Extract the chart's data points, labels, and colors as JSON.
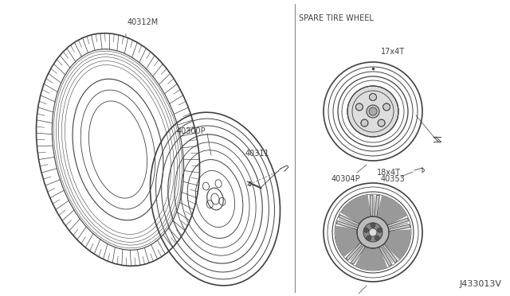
{
  "bg_color": "#ffffff",
  "line_color": "#404040",
  "title": "SPARE TIRE WHEEL",
  "label_17": "17x4T",
  "label_18": "18x4T",
  "part_40312M": "40312M",
  "part_40311": "40311",
  "part_40300P": "40300P",
  "part_40304P_1": "40304P",
  "part_40353": "40353",
  "part_40304P_2": "40304P",
  "part_J": "J433013V",
  "font_size": 7
}
